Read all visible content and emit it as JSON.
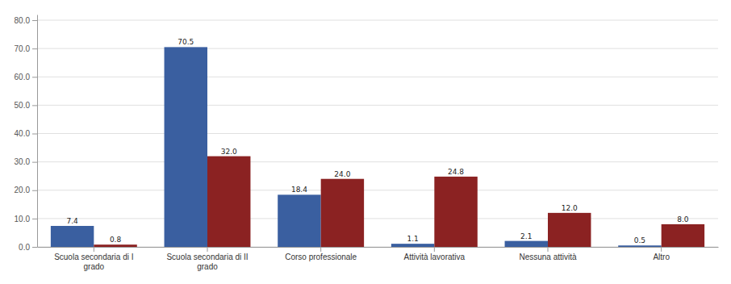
{
  "chart_data": {
    "type": "bar",
    "categories": [
      "Scuola secondaria di I\ngrado",
      "Scuola secondaria di II\ngrado",
      "Corso professionale",
      "Attività lavorativa",
      "Nessuna attività",
      "Altro"
    ],
    "series": [
      {
        "color": "#3a5fa0",
        "values": [
          7.4,
          70.5,
          18.4,
          1.1,
          2.1,
          0.5
        ],
        "value_labels": [
          "7.4",
          "70.5",
          "18.4",
          "1.1",
          "2.1",
          "0.5"
        ]
      },
      {
        "color": "#8b2222",
        "values": [
          0.8,
          32.0,
          24.0,
          24.8,
          12.0,
          8.0
        ],
        "value_labels": [
          "0.8",
          "32.0",
          "24.0",
          "24.8",
          "12.0",
          "8.0"
        ]
      }
    ],
    "ylim": [
      0,
      82
    ],
    "yticks": [
      {
        "value": 0,
        "label": "0.0"
      },
      {
        "value": 10,
        "label": "10.0"
      },
      {
        "value": 20,
        "label": "20.0"
      },
      {
        "value": 30,
        "label": "30.0"
      },
      {
        "value": 40,
        "label": "40.0"
      },
      {
        "value": 50,
        "label": "50.0"
      },
      {
        "value": 60,
        "label": "60.0"
      },
      {
        "value": 70,
        "label": "70.0"
      },
      {
        "value": 80,
        "label": "80.0"
      }
    ],
    "grid": true,
    "data_labels": true
  }
}
